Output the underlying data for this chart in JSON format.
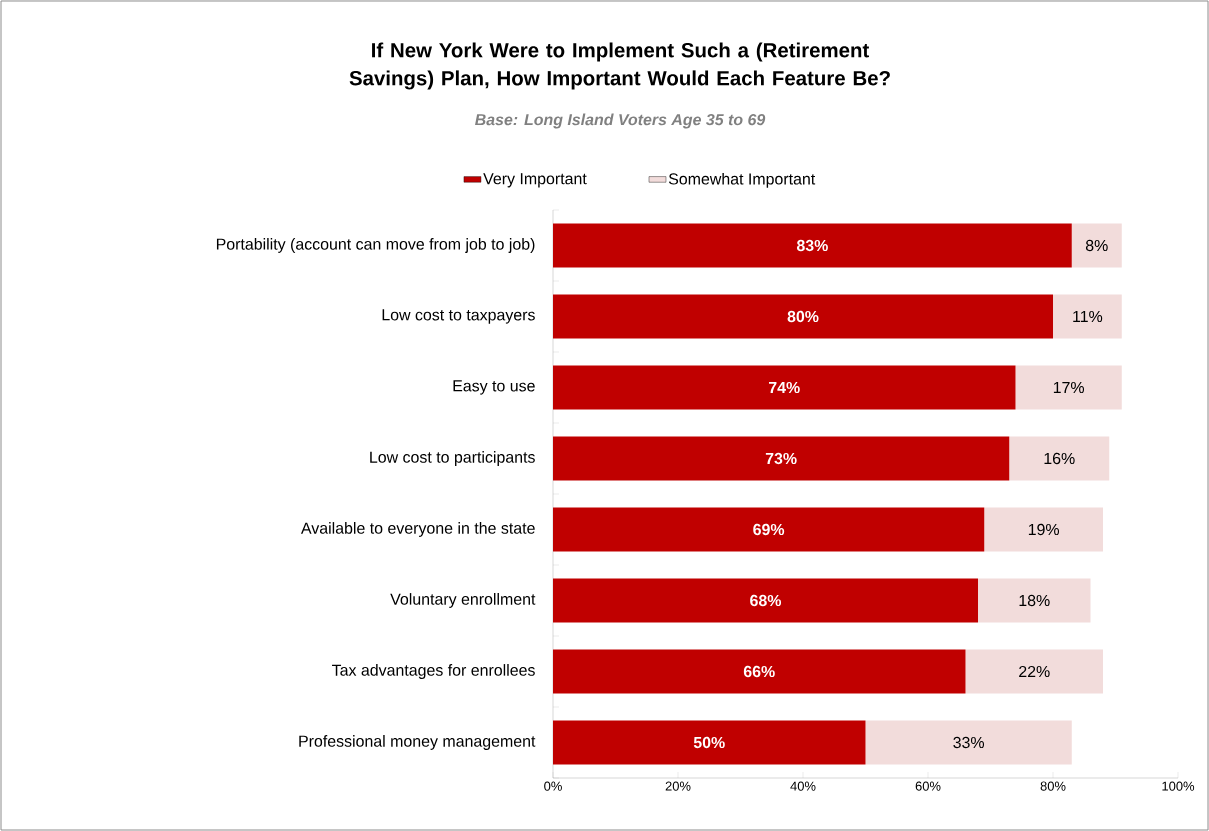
{
  "chart_data": {
    "type": "bar",
    "orientation": "horizontal",
    "stacked": true,
    "title": "If New York Were to Implement Such a (Retirement Savings) Plan, How Important Would Each Feature Be?",
    "subtitle": "Base: Long Island Voters Age 35 to 69",
    "categories": [
      "Portability (account can move from job to job)",
      "Low cost to taxpayers",
      "Easy to use",
      "Low cost to participants",
      "Available to everyone in the state",
      "Voluntary enrollment",
      "Tax advantages for enrollees",
      "Professional money management"
    ],
    "series": [
      {
        "name": "Very Important",
        "color": "#c00000",
        "values": [
          83,
          80,
          74,
          73,
          69,
          68,
          66,
          50
        ],
        "value_labels": [
          "83%",
          "80%",
          "74%",
          "73%",
          "69%",
          "68%",
          "66%",
          "50%"
        ]
      },
      {
        "name": "Somewhat Important",
        "color": "#f2dcdb",
        "values": [
          8,
          11,
          17,
          16,
          19,
          18,
          22,
          33
        ],
        "value_labels": [
          "8%",
          "11%",
          "17%",
          "16%",
          "19%",
          "18%",
          "22%",
          "33%"
        ]
      }
    ],
    "xlim": [
      0,
      100
    ],
    "xticks": [
      {
        "value": 0,
        "label": "0%"
      },
      {
        "value": 20,
        "label": "20%"
      },
      {
        "value": 40,
        "label": "40%"
      },
      {
        "value": 60,
        "label": "60%"
      },
      {
        "value": 80,
        "label": "80%"
      },
      {
        "value": 100,
        "label": "100%"
      }
    ],
    "legend": "top"
  }
}
